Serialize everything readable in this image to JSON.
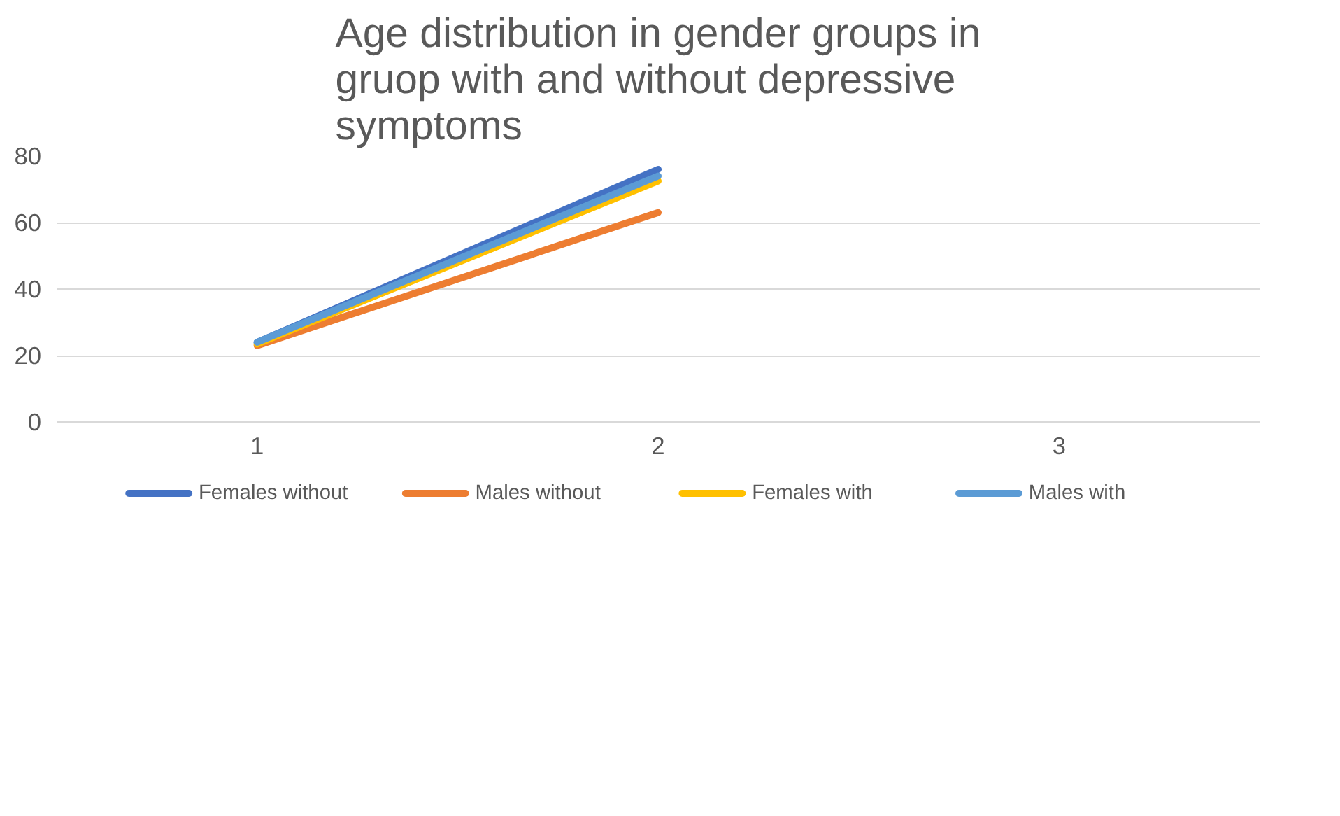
{
  "chart_data": {
    "type": "line",
    "title": "Age distribution in gender groups in gruop with and without depressive symptoms",
    "categories": [
      "1",
      "2",
      "3"
    ],
    "series": [
      {
        "name": "Females without",
        "color": "#4472c4",
        "values": [
          24,
          76,
          null
        ]
      },
      {
        "name": "Males without",
        "color": "#ed7d31",
        "values": [
          23,
          63,
          null
        ]
      },
      {
        "name": "Females with",
        "color": "#ffc000",
        "values": [
          23.5,
          72.5,
          null
        ]
      },
      {
        "name": "Males with",
        "color": "#5b9bd5",
        "values": [
          24,
          74,
          null
        ]
      }
    ],
    "ylim": [
      0,
      80
    ],
    "yticks": [
      0,
      20,
      40,
      60,
      80
    ],
    "grid": "y",
    "legend": "bottom",
    "marker": "none",
    "line_style": "solid"
  }
}
